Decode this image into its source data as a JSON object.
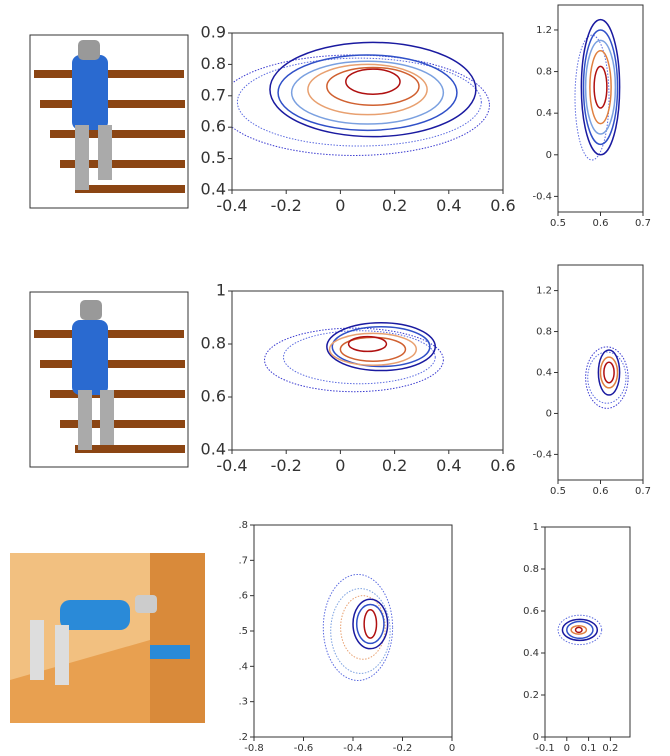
{
  "chart_data": [
    {
      "type": "contour",
      "xlim": [
        -0.4,
        0.6
      ],
      "ylim": [
        0.4,
        0.9
      ],
      "xticks": [
        -0.4,
        -0.2,
        0,
        0.2,
        0.4,
        0.6
      ],
      "yticks": [
        0.4,
        0.5,
        0.6,
        0.7,
        0.8,
        0.9
      ],
      "contours": [
        {
          "color": "#3a3ad0",
          "dashed": true,
          "center": [
            0.05,
            0.67
          ],
          "radius": [
            0.5,
            0.16
          ]
        },
        {
          "color": "#5a6ae0",
          "dashed": true,
          "center": [
            0.07,
            0.68
          ],
          "radius": [
            0.45,
            0.14
          ]
        },
        {
          "color": "#1a1aa0",
          "dashed": false,
          "center": [
            0.12,
            0.72
          ],
          "radius": [
            0.38,
            0.15
          ]
        },
        {
          "color": "#3050c8",
          "dashed": false,
          "center": [
            0.1,
            0.71
          ],
          "radius": [
            0.33,
            0.12
          ]
        },
        {
          "color": "#7aa0e0",
          "dashed": false,
          "center": [
            0.1,
            0.71
          ],
          "radius": [
            0.28,
            0.1
          ]
        },
        {
          "color": "#e8a070",
          "dashed": false,
          "center": [
            0.1,
            0.72
          ],
          "radius": [
            0.22,
            0.08
          ]
        },
        {
          "color": "#d06030",
          "dashed": false,
          "center": [
            0.12,
            0.73
          ],
          "radius": [
            0.17,
            0.06
          ]
        },
        {
          "color": "#b01010",
          "dashed": false,
          "center": [
            0.12,
            0.745
          ],
          "radius": [
            0.1,
            0.04
          ]
        }
      ]
    },
    {
      "type": "contour",
      "xlim": [
        0.5,
        0.7
      ],
      "ylim": [
        -0.55,
        1.44
      ],
      "xticks": [
        0.5,
        0.6,
        0.7
      ],
      "yticks": [
        -0.4,
        0,
        0.4,
        0.8,
        1.2
      ],
      "contours": [
        {
          "color": "#5a6ae0",
          "dashed": true,
          "center": [
            0.58,
            0.55
          ],
          "radius": [
            0.04,
            0.6
          ]
        },
        {
          "color": "#1a1aa0",
          "dashed": false,
          "center": [
            0.6,
            0.65
          ],
          "radius": [
            0.045,
            0.65
          ]
        },
        {
          "color": "#3050c8",
          "dashed": false,
          "center": [
            0.6,
            0.65
          ],
          "radius": [
            0.04,
            0.55
          ]
        },
        {
          "color": "#7aa0e0",
          "dashed": false,
          "center": [
            0.6,
            0.65
          ],
          "radius": [
            0.035,
            0.45
          ]
        },
        {
          "color": "#e08040",
          "dashed": false,
          "center": [
            0.6,
            0.65
          ],
          "radius": [
            0.025,
            0.35
          ]
        },
        {
          "color": "#b01010",
          "dashed": false,
          "center": [
            0.6,
            0.65
          ],
          "radius": [
            0.015,
            0.2
          ]
        }
      ]
    },
    {
      "type": "contour",
      "xlim": [
        -0.4,
        0.6
      ],
      "ylim": [
        0.4,
        1
      ],
      "xticks": [
        -0.4,
        -0.2,
        0,
        0.2,
        0.4,
        0.6
      ],
      "yticks": [
        0.4,
        0.6,
        0.8,
        1
      ],
      "contours": [
        {
          "color": "#3a3ad0",
          "dashed": true,
          "center": [
            0.05,
            0.74
          ],
          "radius": [
            0.33,
            0.12
          ]
        },
        {
          "color": "#5a6ae0",
          "dashed": true,
          "center": [
            0.07,
            0.75
          ],
          "radius": [
            0.28,
            0.1
          ]
        },
        {
          "color": "#1a1aa0",
          "dashed": false,
          "center": [
            0.15,
            0.79
          ],
          "radius": [
            0.2,
            0.09
          ]
        },
        {
          "color": "#3050c8",
          "dashed": false,
          "center": [
            0.15,
            0.79
          ],
          "radius": [
            0.18,
            0.075
          ]
        },
        {
          "color": "#e8a070",
          "dashed": false,
          "center": [
            0.12,
            0.78
          ],
          "radius": [
            0.16,
            0.06
          ]
        },
        {
          "color": "#d06030",
          "dashed": false,
          "center": [
            0.12,
            0.78
          ],
          "radius": [
            0.12,
            0.045
          ]
        },
        {
          "color": "#b01010",
          "dashed": false,
          "center": [
            0.1,
            0.8
          ],
          "radius": [
            0.07,
            0.028
          ]
        }
      ]
    },
    {
      "type": "contour",
      "xlim": [
        0.5,
        0.7
      ],
      "ylim": [
        -0.65,
        1.45
      ],
      "xticks": [
        0.5,
        0.6,
        0.7
      ],
      "yticks": [
        -0.4,
        0,
        0.4,
        0.8,
        1.2
      ],
      "contours": [
        {
          "color": "#3a3ad0",
          "dashed": true,
          "center": [
            0.615,
            0.35
          ],
          "radius": [
            0.05,
            0.3
          ]
        },
        {
          "color": "#5a6ae0",
          "dashed": true,
          "center": [
            0.615,
            0.35
          ],
          "radius": [
            0.045,
            0.25
          ]
        },
        {
          "color": "#1a1aa0",
          "dashed": false,
          "center": [
            0.62,
            0.4
          ],
          "radius": [
            0.025,
            0.22
          ]
        },
        {
          "color": "#e08040",
          "dashed": false,
          "center": [
            0.62,
            0.4
          ],
          "radius": [
            0.02,
            0.15
          ]
        },
        {
          "color": "#b01010",
          "dashed": false,
          "center": [
            0.62,
            0.4
          ],
          "radius": [
            0.012,
            0.1
          ]
        }
      ]
    },
    {
      "type": "contour",
      "xlim": [
        -0.8,
        0
      ],
      "ylim": [
        0.2,
        0.8
      ],
      "xticks": [
        -0.8,
        -0.6,
        -0.4,
        -0.2,
        0
      ],
      "yticks": [
        {
          "value": 0.2,
          "label": ".2"
        },
        {
          "value": 0.3,
          "label": ".3"
        },
        {
          "value": 0.4,
          "label": ".4"
        },
        {
          "value": 0.5,
          "label": ".5"
        },
        {
          "value": 0.6,
          "label": ".6"
        },
        {
          "value": 0.7,
          "label": ".7"
        },
        {
          "value": 0.8,
          "label": ".8"
        }
      ],
      "contours": [
        {
          "color": "#5a6ae0",
          "dashed": true,
          "center": [
            -0.38,
            0.51
          ],
          "radius": [
            0.14,
            0.15
          ]
        },
        {
          "color": "#7aa0e0",
          "dashed": true,
          "center": [
            -0.37,
            0.5
          ],
          "radius": [
            0.12,
            0.12
          ]
        },
        {
          "color": "#e8a070",
          "dashed": true,
          "center": [
            -0.36,
            0.51
          ],
          "radius": [
            0.09,
            0.09
          ]
        },
        {
          "color": "#1a1aa0",
          "dashed": false,
          "center": [
            -0.33,
            0.52
          ],
          "radius": [
            0.07,
            0.07
          ]
        },
        {
          "color": "#3050c8",
          "dashed": false,
          "center": [
            -0.33,
            0.52
          ],
          "radius": [
            0.055,
            0.055
          ]
        },
        {
          "color": "#b01010",
          "dashed": false,
          "center": [
            -0.33,
            0.52
          ],
          "radius": [
            0.025,
            0.04
          ]
        }
      ]
    },
    {
      "type": "contour",
      "xlim": [
        -0.1,
        0.29
      ],
      "ylim": [
        0,
        1
      ],
      "xticks": [
        -0.1,
        0,
        0.1,
        0.2
      ],
      "yticks": [
        0,
        0.2,
        0.4,
        0.6,
        0.8,
        1
      ],
      "contours": [
        {
          "color": "#5a6ae0",
          "dashed": true,
          "center": [
            0.06,
            0.51
          ],
          "radius": [
            0.1,
            0.07
          ]
        },
        {
          "color": "#1a1aa0",
          "dashed": false,
          "center": [
            0.06,
            0.51
          ],
          "radius": [
            0.08,
            0.05
          ]
        },
        {
          "color": "#3050c8",
          "dashed": false,
          "center": [
            0.06,
            0.51
          ],
          "radius": [
            0.06,
            0.04
          ]
        },
        {
          "color": "#e08040",
          "dashed": false,
          "center": [
            0.055,
            0.51
          ],
          "radius": [
            0.035,
            0.02
          ]
        },
        {
          "color": "#b01010",
          "dashed": false,
          "center": [
            0.055,
            0.51
          ],
          "radius": [
            0.015,
            0.012
          ]
        }
      ]
    }
  ]
}
